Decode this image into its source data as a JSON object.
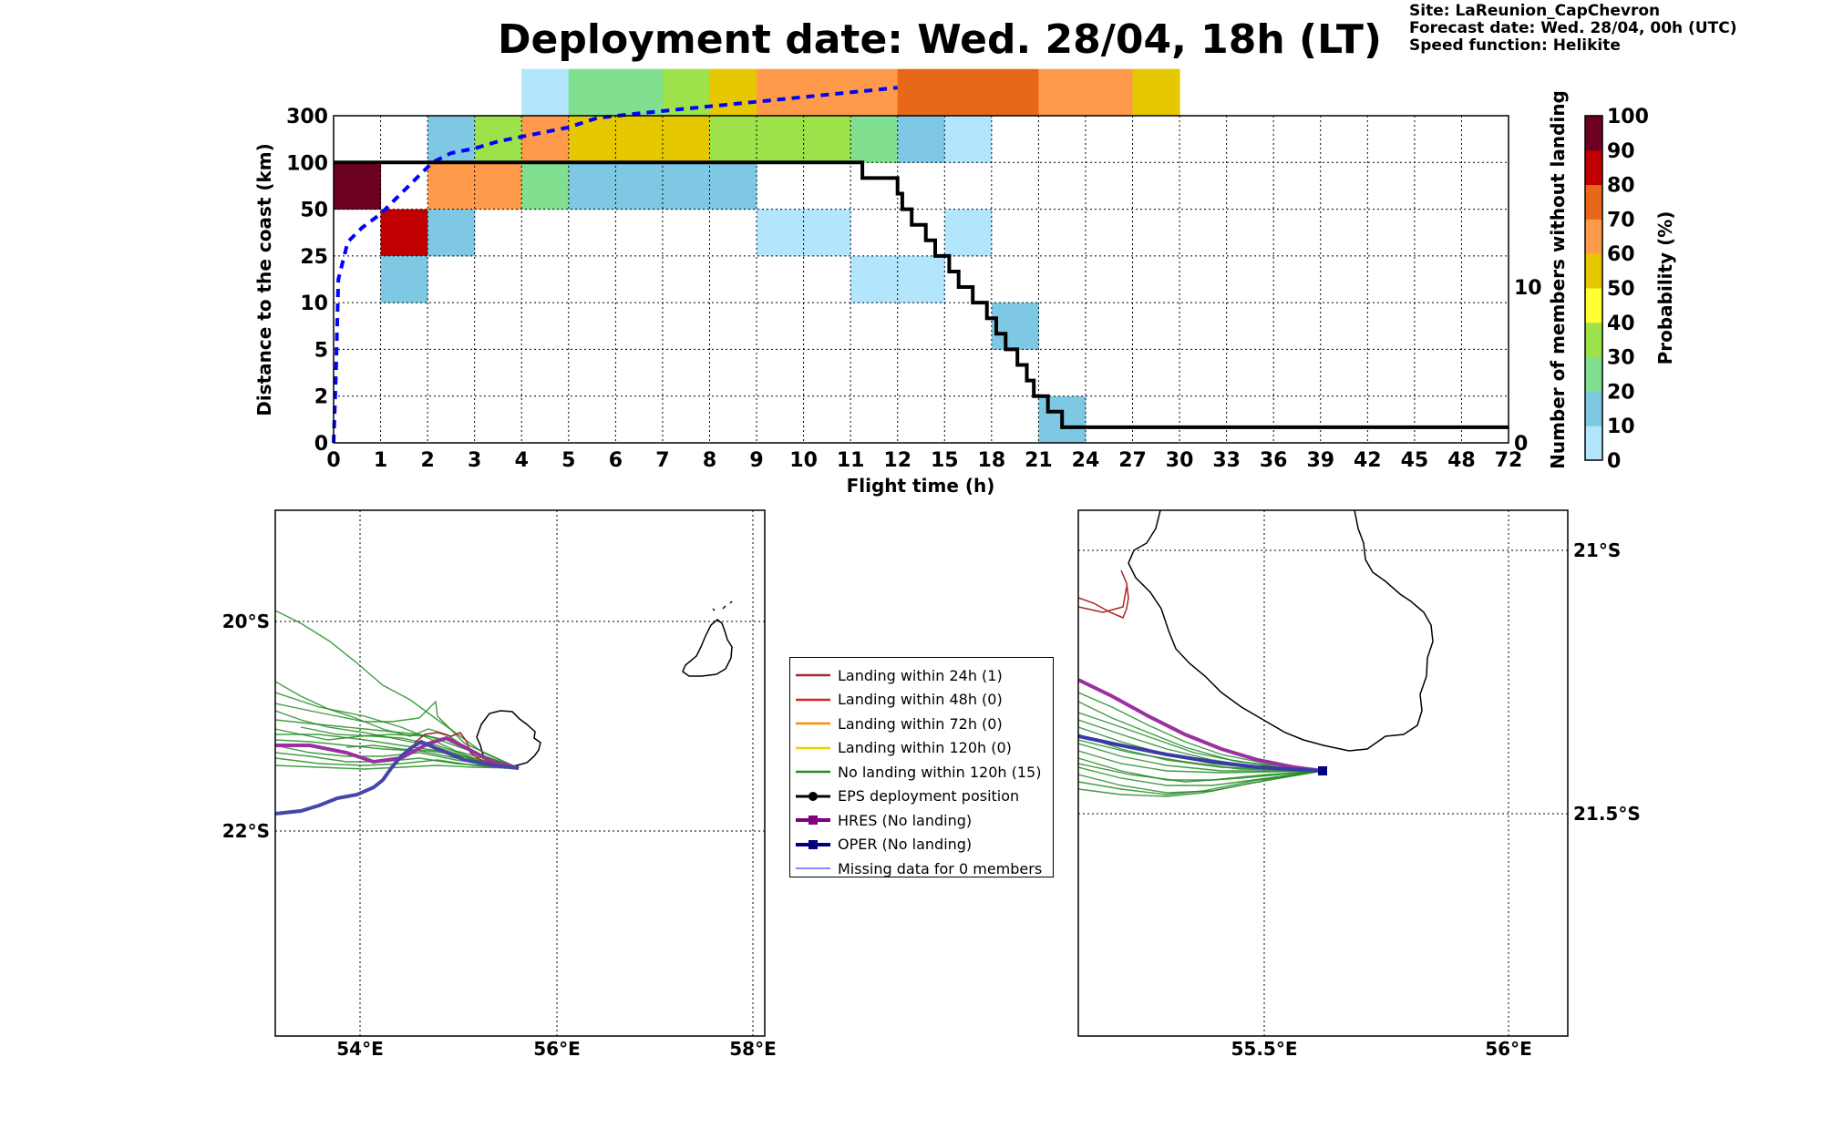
{
  "title": "Deployment date: Wed. 28/04, 18h (LT)",
  "info": {
    "site": "Site: LaReunion_CapChevron",
    "forecast": "Forecast date: Wed. 28/04, 00h (UTC)",
    "speed": "Speed function: Helikite"
  },
  "chart_data": [
    {
      "type": "heatmap",
      "xlabel": "Flight time (h)",
      "ylabel": "Distance to the coast (km)",
      "y2label": "Number of members without landing",
      "colorbar_label": "Probability (%)",
      "x_ticks": [
        "0",
        "1",
        "2",
        "3",
        "4",
        "5",
        "6",
        "7",
        "8",
        "9",
        "10",
        "11",
        "12",
        "15",
        "18",
        "21",
        "24",
        "27",
        "30",
        "33",
        "36",
        "39",
        "42",
        "45",
        "48",
        "72"
      ],
      "y_ticks": [
        "0",
        "2",
        "5",
        "10",
        "25",
        "50",
        "100",
        "300"
      ],
      "y2_ticks": [
        "0",
        "10"
      ],
      "y2_range": [
        0,
        21
      ],
      "colorbar_ticks": [
        "0",
        "10",
        "20",
        "30",
        "40",
        "50",
        "60",
        "70",
        "80",
        "90",
        "100"
      ],
      "colorbar_colors": [
        "#b3e5fc",
        "#7ec8e3",
        "#80e090",
        "#9de24a",
        "#ffff33",
        "#e6c800",
        "#ff9a4a",
        "#e8681a",
        "#c00000",
        "#6b0020"
      ],
      "grid": true,
      "cells": [
        {
          "x": 0,
          "y": 5,
          "p": 95
        },
        {
          "x": 1,
          "y": 4,
          "p": 85
        },
        {
          "x": 1,
          "y": 3,
          "p": 10
        },
        {
          "x": 2,
          "y": 6,
          "p": 10
        },
        {
          "x": 2,
          "y": 5,
          "p": 65
        },
        {
          "x": 2,
          "y": 4,
          "p": 10
        },
        {
          "x": 3,
          "y": 6,
          "p": 35
        },
        {
          "x": 3,
          "y": 5,
          "p": 65
        },
        {
          "x": 4,
          "y": 7,
          "p": 5
        },
        {
          "x": 4,
          "y": 6,
          "p": 65
        },
        {
          "x": 4,
          "y": 5,
          "p": 25
        },
        {
          "x": 5,
          "y": 7,
          "p": 25
        },
        {
          "x": 5,
          "y": 6,
          "p": 55
        },
        {
          "x": 5,
          "y": 5,
          "p": 10
        },
        {
          "x": 6,
          "y": 7,
          "p": 25
        },
        {
          "x": 6,
          "y": 6,
          "p": 55
        },
        {
          "x": 6,
          "y": 5,
          "p": 10
        },
        {
          "x": 7,
          "y": 7,
          "p": 35
        },
        {
          "x": 7,
          "y": 6,
          "p": 55
        },
        {
          "x": 7,
          "y": 5,
          "p": 10
        },
        {
          "x": 8,
          "y": 7,
          "p": 55
        },
        {
          "x": 8,
          "y": 6,
          "p": 35
        },
        {
          "x": 8,
          "y": 5,
          "p": 10
        },
        {
          "x": 9,
          "y": 7,
          "p": 65
        },
        {
          "x": 9,
          "y": 6,
          "p": 35
        },
        {
          "x": 9,
          "y": 4,
          "p": 5
        },
        {
          "x": 10,
          "y": 7,
          "p": 65
        },
        {
          "x": 10,
          "y": 6,
          "p": 35
        },
        {
          "x": 10,
          "y": 4,
          "p": 5
        },
        {
          "x": 11,
          "y": 7,
          "p": 65
        },
        {
          "x": 11,
          "y": 6,
          "p": 25
        },
        {
          "x": 11,
          "y": 3,
          "p": 5
        },
        {
          "x": 12,
          "y": 7,
          "p": 75
        },
        {
          "x": 12,
          "y": 6,
          "p": 10
        },
        {
          "x": 12,
          "y": 3,
          "p": 5
        },
        {
          "x": 13,
          "y": 7,
          "p": 75
        },
        {
          "x": 13,
          "y": 6,
          "p": 5
        },
        {
          "x": 13,
          "y": 4,
          "p": 5
        },
        {
          "x": 14,
          "y": 7,
          "p": 75
        },
        {
          "x": 14,
          "y": 2,
          "p": 10
        },
        {
          "x": 15,
          "y": 7,
          "p": 65
        },
        {
          "x": 15,
          "y": 0,
          "p": 10
        },
        {
          "x": 16,
          "y": 7,
          "p": 65
        },
        {
          "x": 17,
          "y": 7,
          "p": 55
        }
      ],
      "eps_cumulative_km_line": {
        "color": "#0000ff",
        "style": "dashed",
        "points": [
          [
            0,
            0
          ],
          [
            0.05,
            1.5
          ],
          [
            0.1,
            3.5
          ],
          [
            0.3,
            4.3
          ],
          [
            0.6,
            4.6
          ],
          [
            1,
            4.9
          ],
          [
            1.4,
            5.3
          ],
          [
            1.8,
            5.7
          ],
          [
            2.1,
            6.0
          ],
          [
            2.5,
            6.2
          ],
          [
            3,
            6.3
          ],
          [
            3.5,
            6.45
          ],
          [
            4,
            6.55
          ],
          [
            4.5,
            6.65
          ],
          [
            5,
            6.75
          ],
          [
            5.6,
            6.95
          ],
          [
            6.5,
            7.05
          ],
          [
            7.5,
            7.15
          ],
          [
            8.5,
            7.25
          ],
          [
            9.5,
            7.35
          ],
          [
            10.5,
            7.45
          ],
          [
            11.5,
            7.55
          ],
          [
            12,
            7.6
          ]
        ]
      },
      "members_without_landing_step": {
        "color": "#000000",
        "x_at": [
          0,
          11.25,
          12,
          12.1,
          12.3,
          12.6,
          12.8,
          13.1,
          13.3,
          13.6,
          13.9,
          14.1,
          14.3,
          14.55,
          14.75,
          14.9,
          15.2,
          15.5,
          15.75,
          16.1,
          16.35,
          16.8,
          17.4,
          17.95,
          18.15,
          18.6,
          19.6,
          20.2,
          21.7
        ],
        "values": [
          18,
          17,
          16,
          15,
          14,
          13,
          12,
          11,
          10,
          9,
          8,
          7,
          6,
          5,
          4,
          3,
          2,
          1,
          1,
          1,
          1,
          1,
          1,
          1,
          1,
          1,
          1,
          1,
          1
        ]
      }
    },
    {
      "type": "map",
      "name": "left-map",
      "x_ticks": [
        "54°E",
        "56°E",
        "58°E"
      ],
      "y_ticks": [
        "20°S",
        "22°S"
      ],
      "lon_range": [
        53.15,
        58.1
      ],
      "lat_range": [
        -24.0,
        -19.0
      ]
    },
    {
      "type": "map",
      "name": "right-map",
      "x_ticks": [
        "55.5°E",
        "56°E"
      ],
      "y_ticks": [
        "21°S",
        "21.5°S"
      ],
      "lon_range": [
        55.12,
        56.12
      ],
      "lat_range": [
        -21.93,
        -20.93
      ]
    }
  ],
  "legend": {
    "items": [
      {
        "label": "Landing within 24h (1)",
        "color": "#a52a2a",
        "kind": "line"
      },
      {
        "label": "Landing within 48h (0)",
        "color": "#e02020",
        "kind": "line"
      },
      {
        "label": "Landing within 72h (0)",
        "color": "#ff8c00",
        "kind": "line"
      },
      {
        "label": "Landing within 120h (0)",
        "color": "#f0d000",
        "kind": "line"
      },
      {
        "label": "No landing within 120h (15)",
        "color": "#228b22",
        "kind": "line"
      },
      {
        "label": "EPS deployment position",
        "color": "#000000",
        "kind": "dot"
      },
      {
        "label": "HRES (No landing)",
        "color": "#800080",
        "kind": "square"
      },
      {
        "label": "OPER (No landing)",
        "color": "#000080",
        "kind": "square"
      },
      {
        "label": "Missing data for 0 members",
        "color": "#4040ff",
        "kind": "thin"
      }
    ]
  }
}
